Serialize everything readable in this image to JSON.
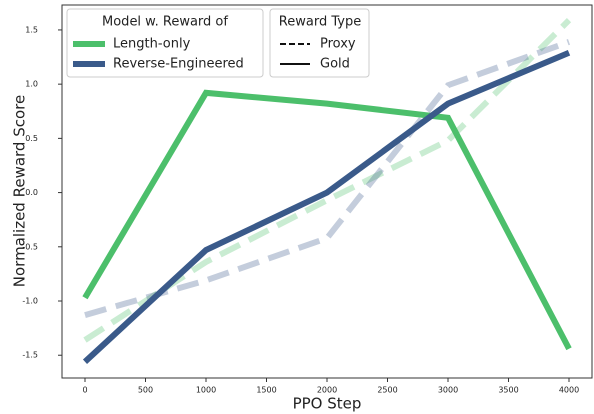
{
  "chart_data": {
    "type": "line",
    "xlabel": "PPO Step",
    "ylabel": "Normalized Reward Score",
    "x": [
      0,
      1000,
      2000,
      3000,
      4000
    ],
    "series": [
      {
        "name": "Length-only",
        "color": "#4cbf6b",
        "values": [
          -0.97,
          0.92,
          0.82,
          0.69,
          -1.44
        ],
        "proxy_values": [
          -1.36,
          -0.64,
          -0.07,
          0.48,
          1.59
        ]
      },
      {
        "name": "Reverse-Engineered",
        "color": "#3a5a8a",
        "values": [
          -1.56,
          -0.53,
          0.0,
          0.82,
          1.29
        ],
        "proxy_values": [
          -1.13,
          -0.81,
          -0.42,
          0.99,
          1.39
        ]
      }
    ],
    "proxy_opacity": 0.3,
    "legend_title": "Model w. Reward of",
    "style_legend_title": "Reward Type",
    "style_names": [
      "Proxy",
      "Gold"
    ],
    "xlim": [
      -190,
      4190
    ],
    "ylim": [
      -1.71,
      1.73
    ],
    "xticks": [
      0,
      500,
      1000,
      1500,
      2000,
      2500,
      3000,
      3500,
      4000
    ],
    "yticks": [
      -1.5,
      {
        "value": -1,
        "label": "-1.0"
      },
      -0.5,
      {
        "value": 0,
        "label": "0.0"
      },
      0.5,
      {
        "value": 1,
        "label": "1.0"
      },
      1.5
    ],
    "grid": false
  }
}
